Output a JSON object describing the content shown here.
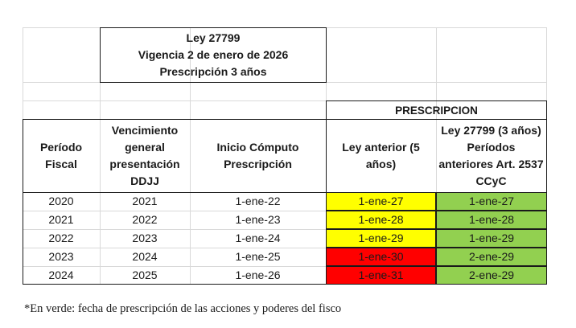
{
  "law_box": {
    "line1": "Ley 27799",
    "line2": "Vigencia 2 de enero de 2026",
    "line3": "Prescripción 3 años"
  },
  "prescripcion_header": "PRESCRIPCION",
  "columns": {
    "periodo": "Período Fiscal",
    "vencimiento": "Vencimiento general presentación DDJJ",
    "inicio": "Inicio Cómputo Prescripción",
    "ley_anterior": "Ley anterior (5 años)",
    "ley_nueva": "Ley 27799 (3 años) Períodos anteriores Art. 2537 CCyC"
  },
  "rows": [
    {
      "periodo": "2020",
      "vencimiento": "2021",
      "inicio": "1-ene-22",
      "ley_anterior": "1-ene-27",
      "ley_nueva": "1-ene-27",
      "ley_anterior_color": "yellow"
    },
    {
      "periodo": "2021",
      "vencimiento": "2022",
      "inicio": "1-ene-23",
      "ley_anterior": "1-ene-28",
      "ley_nueva": "1-ene-28",
      "ley_anterior_color": "yellow"
    },
    {
      "periodo": "2022",
      "vencimiento": "2023",
      "inicio": "1-ene-24",
      "ley_anterior": "1-ene-29",
      "ley_nueva": "1-ene-29",
      "ley_anterior_color": "yellow"
    },
    {
      "periodo": "2023",
      "vencimiento": "2024",
      "inicio": "1-ene-25",
      "ley_anterior": "1-ene-30",
      "ley_nueva": "2-ene-29",
      "ley_anterior_color": "red"
    },
    {
      "periodo": "2024",
      "vencimiento": "2025",
      "inicio": "1-ene-26",
      "ley_anterior": "1-ene-31",
      "ley_nueva": "2-ene-29",
      "ley_anterior_color": "red"
    }
  ],
  "colors": {
    "yellow": "#ffff00",
    "red": "#ff0000",
    "green": "#92d050"
  },
  "footnote": "*En verde: fecha de prescripción de las acciones y poderes del fisco"
}
